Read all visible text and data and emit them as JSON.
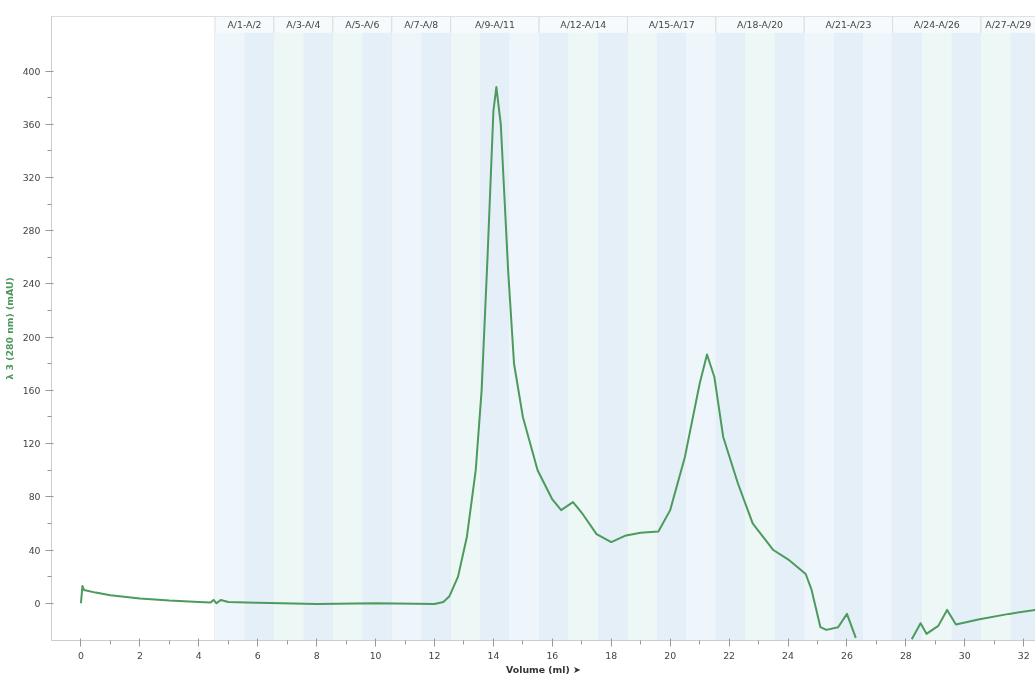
{
  "chart_data": {
    "type": "line",
    "xlabel": "Volume (ml) ➤",
    "ylabel": "λ 3 (280 nm) (mAU)",
    "xlim": [
      -1,
      32.4
    ],
    "ylim": [
      -28,
      441
    ],
    "xticks": [
      0,
      2,
      4,
      6,
      8,
      10,
      12,
      14,
      16,
      18,
      20,
      22,
      24,
      26,
      28,
      30,
      32
    ],
    "yticks": [
      0,
      40,
      80,
      120,
      160,
      200,
      240,
      280,
      320,
      360,
      400
    ],
    "grid": false,
    "line_style": "solid",
    "marker": "none",
    "x": [
      0,
      0.05,
      0.1,
      0.5,
      1,
      2,
      3,
      4,
      4.4,
      4.5,
      4.6,
      4.75,
      5,
      6,
      8,
      10,
      12,
      12.3,
      12.5,
      12.8,
      13.1,
      13.4,
      13.6,
      13.8,
      14.0,
      14.1,
      14.25,
      14.5,
      14.7,
      15.0,
      15.5,
      16.0,
      16.3,
      16.7,
      17.0,
      17.5,
      18.0,
      18.5,
      19.0,
      19.6,
      20.0,
      20.5,
      21.0,
      21.25,
      21.5,
      21.8,
      22.3,
      22.8,
      23.5,
      24.0,
      24.6,
      24.8,
      25.1,
      25.3,
      25.7,
      26.0,
      26.3,
      27.0,
      28.2,
      28.5,
      28.7,
      29.1,
      29.4,
      29.7,
      30.5,
      31.5,
      32.4
    ],
    "series": [
      {
        "color": "#4c9a5c",
        "values": [
          0,
          13,
          10,
          8,
          6,
          3.5,
          2,
          1,
          0.5,
          2.5,
          0,
          2.5,
          1,
          0.3,
          -0.5,
          0,
          -0.5,
          1,
          5,
          20,
          50,
          100,
          160,
          260,
          370,
          388,
          360,
          250,
          180,
          140,
          100,
          78,
          70,
          76,
          68,
          52,
          46,
          51,
          53,
          54,
          70,
          110,
          165,
          187,
          170,
          125,
          90,
          60,
          40,
          33,
          22,
          10,
          -18,
          -20,
          -18,
          -8,
          -26,
          null,
          -27,
          -15,
          -23,
          -17,
          -5,
          -16,
          -12,
          -8,
          -5
        ]
      }
    ],
    "bands": [
      {
        "axis": "x",
        "from": 4.55,
        "to": 5.55,
        "color": "#eef6fb"
      },
      {
        "axis": "x",
        "from": 5.55,
        "to": 6.55,
        "color": "#e4eff8"
      },
      {
        "axis": "x",
        "from": 6.55,
        "to": 7.55,
        "color": "#edf7f5"
      },
      {
        "axis": "x",
        "from": 7.55,
        "to": 8.55,
        "color": "#e4eff8"
      },
      {
        "axis": "x",
        "from": 8.55,
        "to": 9.55,
        "color": "#edf7f5"
      },
      {
        "axis": "x",
        "from": 9.55,
        "to": 10.55,
        "color": "#e4eff8"
      },
      {
        "axis": "x",
        "from": 10.55,
        "to": 11.55,
        "color": "#eef6fb"
      },
      {
        "axis": "x",
        "from": 11.55,
        "to": 12.55,
        "color": "#e4eff8"
      },
      {
        "axis": "x",
        "from": 12.55,
        "to": 13.55,
        "color": "#edf7f5"
      },
      {
        "axis": "x",
        "from": 13.55,
        "to": 14.55,
        "color": "#e4eff8"
      },
      {
        "axis": "x",
        "from": 14.55,
        "to": 15.55,
        "color": "#eef6fb"
      },
      {
        "axis": "x",
        "from": 15.55,
        "to": 16.55,
        "color": "#e4eff8"
      },
      {
        "axis": "x",
        "from": 16.55,
        "to": 17.55,
        "color": "#edf7f5"
      },
      {
        "axis": "x",
        "from": 17.55,
        "to": 18.55,
        "color": "#e4eff8"
      },
      {
        "axis": "x",
        "from": 18.55,
        "to": 19.55,
        "color": "#edf7f5"
      },
      {
        "axis": "x",
        "from": 19.55,
        "to": 20.55,
        "color": "#e4eff8"
      },
      {
        "axis": "x",
        "from": 20.55,
        "to": 21.55,
        "color": "#eef6fb"
      },
      {
        "axis": "x",
        "from": 21.55,
        "to": 22.55,
        "color": "#e4eff8"
      },
      {
        "axis": "x",
        "from": 22.55,
        "to": 23.55,
        "color": "#edf7f5"
      },
      {
        "axis": "x",
        "from": 23.55,
        "to": 24.55,
        "color": "#e4eff8"
      },
      {
        "axis": "x",
        "from": 24.55,
        "to": 25.55,
        "color": "#eef6fb"
      },
      {
        "axis": "x",
        "from": 25.55,
        "to": 26.55,
        "color": "#e4eff8"
      },
      {
        "axis": "x",
        "from": 26.55,
        "to": 27.55,
        "color": "#eef6fb"
      },
      {
        "axis": "x",
        "from": 27.55,
        "to": 28.55,
        "color": "#e4eff8"
      },
      {
        "axis": "x",
        "from": 28.55,
        "to": 29.55,
        "color": "#edf7f5"
      },
      {
        "axis": "x",
        "from": 29.55,
        "to": 30.55,
        "color": "#e4eff8"
      },
      {
        "axis": "x",
        "from": 30.55,
        "to": 31.55,
        "color": "#edf7f5"
      },
      {
        "axis": "x",
        "from": 31.55,
        "to": 32.4,
        "color": "#e4eff8"
      },
      {
        "axis": "x",
        "from": 4.55,
        "to": 6.55,
        "label": "A/1-A/2",
        "color": "#f6fafc"
      },
      {
        "axis": "x",
        "from": 6.55,
        "to": 8.55,
        "label": "A/3-A/4",
        "color": "#f6fafc"
      },
      {
        "axis": "x",
        "from": 8.55,
        "to": 10.55,
        "label": "A/5-A/6",
        "color": "#f6fafc"
      },
      {
        "axis": "x",
        "from": 10.55,
        "to": 12.55,
        "label": "A/7-A/8",
        "color": "#f6fafc"
      },
      {
        "axis": "x",
        "from": 12.55,
        "to": 15.55,
        "label": "A/9-A/11",
        "color": "#f6fafc"
      },
      {
        "axis": "x",
        "from": 15.55,
        "to": 18.55,
        "label": "A/12-A/14",
        "color": "#f6fafc"
      },
      {
        "axis": "x",
        "from": 18.55,
        "to": 21.55,
        "label": "A/15-A/17",
        "color": "#f6fafc"
      },
      {
        "axis": "x",
        "from": 21.55,
        "to": 24.55,
        "label": "A/18-A/20",
        "color": "#f6fafc"
      },
      {
        "axis": "x",
        "from": 24.55,
        "to": 27.55,
        "label": "A/21-A/23",
        "color": "#f6fafc"
      },
      {
        "axis": "x",
        "from": 27.55,
        "to": 30.55,
        "label": "A/24-A/26",
        "color": "#f6fafc"
      },
      {
        "axis": "x",
        "from": 30.55,
        "to": 32.4,
        "label": "A/27-A/29",
        "color": "#f6fafc"
      }
    ]
  }
}
